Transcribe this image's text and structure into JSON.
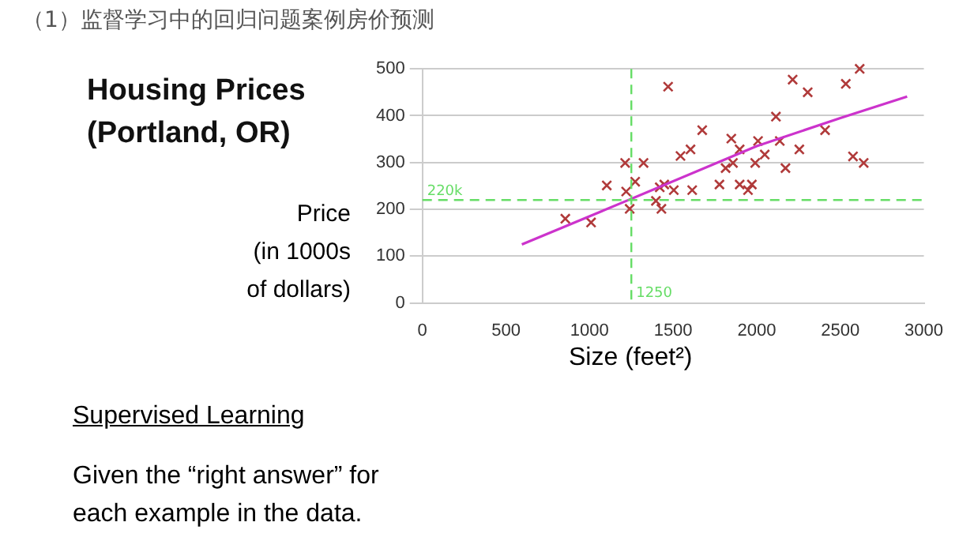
{
  "chart_data": {
    "type": "scatter",
    "title": "（1）监督学习中的回归问题案例房价预测",
    "subtitle": "Housing Prices\n(Portland, OR)",
    "xlabel": "Size (feet²)",
    "ylabel": "Price\n(in 1000s\nof dollars)",
    "annotations": [
      "Supervised Learning",
      "Given the “right answer” for\neach example in the data."
    ],
    "xlim": [
      0,
      3000
    ],
    "xticks": [
      0,
      500,
      1000,
      1500,
      2000,
      2500,
      3000
    ],
    "ylim": [
      0,
      500
    ],
    "yticks": [
      0,
      100,
      200,
      300,
      400,
      500
    ],
    "grid": "y",
    "legend": false,
    "series": [
      {
        "type": "scatter",
        "marker": "cross",
        "color": "#b03a3a",
        "x": [
          855,
          1009,
          1103,
          1213,
          1219,
          1240,
          1273,
          1323,
          1397,
          1420,
          1430,
          1447,
          1470,
          1504,
          1544,
          1604,
          1614,
          1674,
          1777,
          1814,
          1848,
          1858,
          1898,
          1898,
          1948,
          1971,
          1991,
          2008,
          2048,
          2115,
          2138,
          2172,
          2215,
          2255,
          2305,
          2409,
          2533,
          2576,
          2616,
          2640
        ],
        "values": [
          180,
          172,
          251,
          299,
          238,
          201,
          259,
          299,
          218,
          247,
          201,
          253,
          462,
          241,
          314,
          328,
          241,
          369,
          253,
          288,
          351,
          299,
          328,
          253,
          241,
          253,
          299,
          346,
          317,
          398,
          346,
          288,
          477,
          328,
          450,
          369,
          468,
          313,
          500,
          299
        ]
      },
      {
        "type": "line",
        "marker": "none",
        "line_style": "solid",
        "color": "#cc33cc",
        "x": [
          595,
          1200,
          2000,
          2500,
          2900
        ],
        "values": [
          125,
          215,
          335,
          395,
          441
        ]
      }
    ],
    "ref_lines": [
      {
        "axis": "x",
        "value": 1250,
        "label": "1250",
        "color": "#66dd66",
        "line_style": "dashed"
      },
      {
        "axis": "y",
        "value": 220,
        "label": "220k",
        "color": "#66dd66",
        "line_style": "dashed"
      }
    ]
  }
}
